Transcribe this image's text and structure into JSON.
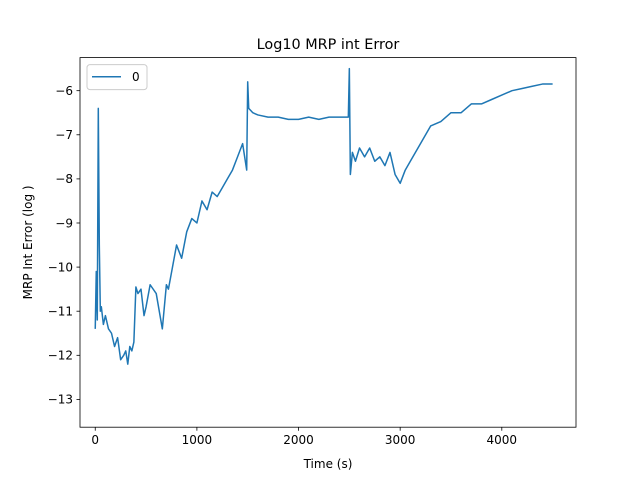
{
  "chart_data": {
    "type": "line",
    "title": "Log10 MRP int Error",
    "xlabel": "Time (s)",
    "ylabel": "MRP Int Error (log )",
    "xlim": [
      -150,
      4730
    ],
    "ylim": [
      -13.63,
      -5.25
    ],
    "xticks": [
      0,
      1000,
      2000,
      3000,
      4000
    ],
    "yticks": [
      -13,
      -12,
      -11,
      -10,
      -9,
      -8,
      -7,
      -6
    ],
    "grid": false,
    "legend": "top-left",
    "color": "#1f77b4",
    "series": [
      {
        "name": "0",
        "x": [
          0,
          10,
          20,
          30,
          40,
          50,
          60,
          80,
          100,
          130,
          160,
          190,
          220,
          250,
          280,
          300,
          320,
          340,
          360,
          380,
          400,
          420,
          450,
          480,
          500,
          540,
          600,
          660,
          700,
          720,
          760,
          800,
          850,
          900,
          950,
          1000,
          1050,
          1100,
          1150,
          1200,
          1250,
          1300,
          1350,
          1400,
          1450,
          1490,
          1500,
          1510,
          1530,
          1550,
          1600,
          1700,
          1800,
          1900,
          2000,
          2100,
          2200,
          2300,
          2400,
          2490,
          2500,
          2510,
          2530,
          2560,
          2600,
          2650,
          2700,
          2750,
          2800,
          2850,
          2900,
          2950,
          3000,
          3050,
          3100,
          3200,
          3300,
          3400,
          3500,
          3600,
          3700,
          3800,
          3900,
          4000,
          4100,
          4200,
          4300,
          4400,
          4500
        ],
        "y": [
          -11.4,
          -10.1,
          -11.2,
          -6.4,
          -9.5,
          -11.0,
          -10.9,
          -11.3,
          -11.1,
          -11.4,
          -11.5,
          -11.8,
          -11.6,
          -12.1,
          -12.0,
          -11.9,
          -12.2,
          -11.8,
          -11.9,
          -11.7,
          -10.45,
          -10.6,
          -10.5,
          -11.1,
          -10.9,
          -10.4,
          -10.6,
          -11.4,
          -10.4,
          -10.5,
          -10.0,
          -9.5,
          -9.8,
          -9.2,
          -8.9,
          -9.0,
          -8.5,
          -8.7,
          -8.3,
          -8.4,
          -8.2,
          -8.0,
          -7.8,
          -7.5,
          -7.2,
          -7.8,
          -5.8,
          -6.4,
          -6.45,
          -6.5,
          -6.55,
          -6.6,
          -6.6,
          -6.65,
          -6.65,
          -6.6,
          -6.65,
          -6.6,
          -6.6,
          -6.6,
          -5.5,
          -7.9,
          -7.4,
          -7.6,
          -7.3,
          -7.5,
          -7.3,
          -7.6,
          -7.5,
          -7.7,
          -7.4,
          -7.9,
          -8.1,
          -7.8,
          -7.6,
          -7.2,
          -6.8,
          -6.7,
          -6.5,
          -6.5,
          -6.3,
          -6.3,
          -6.2,
          -6.1,
          -6.0,
          -5.95,
          -5.9,
          -5.85,
          -5.85
        ]
      }
    ]
  }
}
